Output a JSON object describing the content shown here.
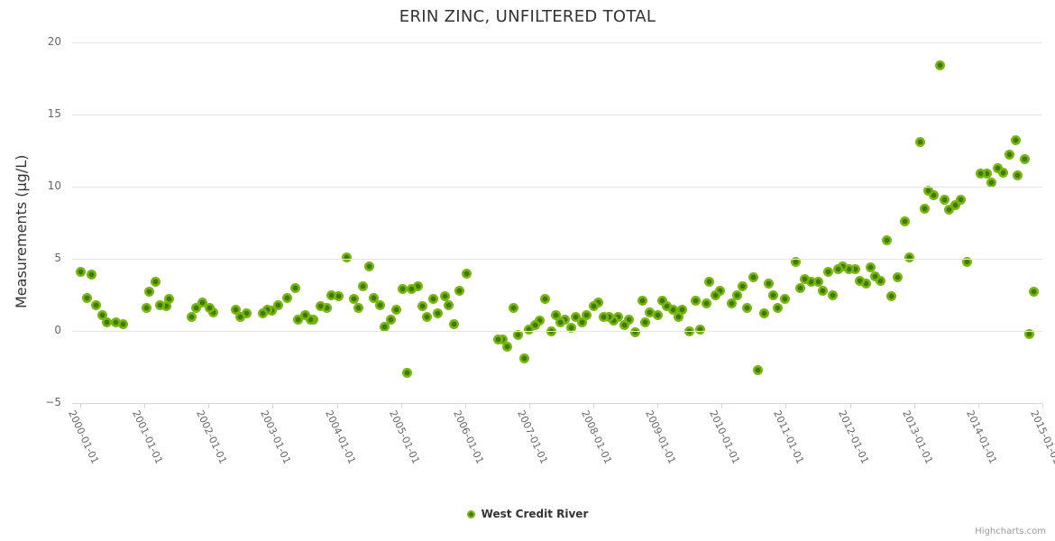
{
  "chart": {
    "credits_label": "Highcharts.com",
    "colors": {
      "marker_outer": "#79b60f",
      "marker_inner": "#3c7a02",
      "gridline": "#e6e6e6",
      "axis_line": "#ccd6eb",
      "title_text": "#333333",
      "tick_text": "#666666",
      "legend_text": "#333333",
      "credits_text": "#999999",
      "background": "#ffffff"
    }
  },
  "chart_data": {
    "type": "scatter",
    "title": "ERIN ZINC, UNFILTERED TOTAL",
    "xlabel": "",
    "ylabel": "Measurements (µg/L)",
    "ylim": [
      -5,
      20
    ],
    "xlim_years": [
      1999.87,
      2015.2
    ],
    "grid": true,
    "legend_position": "bottom-center",
    "y_ticks": [
      20,
      15,
      10,
      5,
      0,
      -5
    ],
    "y_tick_labels": [
      "20",
      "15",
      "10",
      "5",
      "0",
      "−5"
    ],
    "x_tick_labels": [
      "2000-01-01",
      "2001-01-01",
      "2002-01-01",
      "2003-01-01",
      "2004-01-01",
      "2005-01-01",
      "2006-01-01",
      "2007-01-01",
      "2008-01-01",
      "2009-01-01",
      "2010-01-01",
      "2011-01-01",
      "2012-01-01",
      "2013-01-01",
      "2014-01-01",
      "2015-01-01"
    ],
    "series": [
      {
        "name": "West Credit River",
        "points": [
          [
            2000.01,
            4.1
          ],
          [
            2000.11,
            2.3
          ],
          [
            2000.18,
            3.9
          ],
          [
            2000.25,
            1.8
          ],
          [
            2000.35,
            1.1
          ],
          [
            2000.42,
            0.6
          ],
          [
            2000.56,
            0.6
          ],
          [
            2000.67,
            0.5
          ],
          [
            2001.03,
            1.6
          ],
          [
            2001.08,
            2.7
          ],
          [
            2001.17,
            3.4
          ],
          [
            2001.25,
            1.8
          ],
          [
            2001.34,
            1.7
          ],
          [
            2001.39,
            2.2
          ],
          [
            2001.74,
            1.0
          ],
          [
            2001.81,
            1.6
          ],
          [
            2001.91,
            2.0
          ],
          [
            2002.02,
            1.6
          ],
          [
            2002.07,
            1.3
          ],
          [
            2002.43,
            1.5
          ],
          [
            2002.5,
            1.0
          ],
          [
            2002.59,
            1.2
          ],
          [
            2002.84,
            1.2
          ],
          [
            2002.91,
            1.5
          ],
          [
            2002.98,
            1.4
          ],
          [
            2003.08,
            1.8
          ],
          [
            2003.23,
            2.3
          ],
          [
            2003.35,
            3.0
          ],
          [
            2003.39,
            0.8
          ],
          [
            2003.5,
            1.1
          ],
          [
            2003.59,
            0.8
          ],
          [
            2003.64,
            0.8
          ],
          [
            2003.75,
            1.7
          ],
          [
            2003.84,
            1.6
          ],
          [
            2003.92,
            2.5
          ],
          [
            2004.03,
            2.4
          ],
          [
            2004.16,
            5.1
          ],
          [
            2004.26,
            2.2
          ],
          [
            2004.33,
            1.6
          ],
          [
            2004.41,
            3.1
          ],
          [
            2004.5,
            4.5
          ],
          [
            2004.58,
            2.3
          ],
          [
            2004.67,
            1.8
          ],
          [
            2004.74,
            0.3
          ],
          [
            2004.84,
            0.8
          ],
          [
            2004.92,
            1.5
          ],
          [
            2005.03,
            2.9
          ],
          [
            2005.09,
            -2.9
          ],
          [
            2005.16,
            2.9
          ],
          [
            2005.26,
            3.1
          ],
          [
            2005.33,
            1.7
          ],
          [
            2005.4,
            1.0
          ],
          [
            2005.51,
            2.2
          ],
          [
            2005.58,
            1.2
          ],
          [
            2005.68,
            2.4
          ],
          [
            2005.74,
            1.8
          ],
          [
            2005.82,
            0.5
          ],
          [
            2005.91,
            2.8
          ],
          [
            2006.03,
            4.0
          ],
          [
            2006.51,
            -0.6
          ],
          [
            2006.58,
            -0.6
          ],
          [
            2006.66,
            -1.1
          ],
          [
            2006.75,
            1.6
          ],
          [
            2006.83,
            -0.3
          ],
          [
            2006.92,
            -1.9
          ],
          [
            2006.99,
            0.1
          ],
          [
            2007.09,
            0.4
          ],
          [
            2007.16,
            0.7
          ],
          [
            2007.24,
            2.2
          ],
          [
            2007.34,
            0.0
          ],
          [
            2007.42,
            1.1
          ],
          [
            2007.48,
            0.6
          ],
          [
            2007.56,
            0.8
          ],
          [
            2007.65,
            0.2
          ],
          [
            2007.73,
            1.0
          ],
          [
            2007.82,
            0.6
          ],
          [
            2007.9,
            1.1
          ],
          [
            2008.0,
            1.7
          ],
          [
            2008.08,
            2.0
          ],
          [
            2008.16,
            1.0
          ],
          [
            2008.24,
            1.0
          ],
          [
            2008.32,
            0.7
          ],
          [
            2008.39,
            1.0
          ],
          [
            2008.49,
            0.4
          ],
          [
            2008.56,
            0.8
          ],
          [
            2008.65,
            -0.1
          ],
          [
            2008.76,
            2.1
          ],
          [
            2008.81,
            0.6
          ],
          [
            2008.88,
            1.3
          ],
          [
            2009.01,
            1.1
          ],
          [
            2009.08,
            2.1
          ],
          [
            2009.15,
            1.7
          ],
          [
            2009.24,
            1.5
          ],
          [
            2009.33,
            1.0
          ],
          [
            2009.39,
            1.5
          ],
          [
            2009.49,
            0.0
          ],
          [
            2009.59,
            2.1
          ],
          [
            2009.66,
            0.1
          ],
          [
            2009.76,
            1.9
          ],
          [
            2009.81,
            3.4
          ],
          [
            2009.9,
            2.5
          ],
          [
            2009.98,
            2.8
          ],
          [
            2010.15,
            1.9
          ],
          [
            2010.24,
            2.5
          ],
          [
            2010.33,
            3.1
          ],
          [
            2010.4,
            1.6
          ],
          [
            2010.5,
            3.7
          ],
          [
            2010.57,
            -2.7
          ],
          [
            2010.66,
            1.2
          ],
          [
            2010.74,
            3.3
          ],
          [
            2010.81,
            2.5
          ],
          [
            2010.88,
            1.6
          ],
          [
            2010.98,
            2.2
          ],
          [
            2011.15,
            4.8
          ],
          [
            2011.23,
            3.0
          ],
          [
            2011.3,
            3.6
          ],
          [
            2011.39,
            3.4
          ],
          [
            2011.5,
            3.4
          ],
          [
            2011.57,
            2.8
          ],
          [
            2011.66,
            4.1
          ],
          [
            2011.73,
            2.5
          ],
          [
            2011.81,
            4.3
          ],
          [
            2011.89,
            4.5
          ],
          [
            2011.98,
            4.3
          ],
          [
            2012.08,
            4.3
          ],
          [
            2012.16,
            3.5
          ],
          [
            2012.25,
            3.3
          ],
          [
            2012.32,
            4.4
          ],
          [
            2012.39,
            3.8
          ],
          [
            2012.47,
            3.5
          ],
          [
            2012.57,
            6.3
          ],
          [
            2012.65,
            2.4
          ],
          [
            2012.74,
            3.7
          ],
          [
            2012.85,
            7.6
          ],
          [
            2012.92,
            5.1
          ],
          [
            2013.09,
            13.1
          ],
          [
            2013.16,
            8.5
          ],
          [
            2013.22,
            9.7
          ],
          [
            2013.3,
            9.4
          ],
          [
            2013.41,
            18.4
          ],
          [
            2013.47,
            9.1
          ],
          [
            2013.55,
            8.4
          ],
          [
            2013.64,
            8.7
          ],
          [
            2013.73,
            9.1
          ],
          [
            2013.83,
            4.8
          ],
          [
            2014.04,
            10.9
          ],
          [
            2014.14,
            10.9
          ],
          [
            2014.21,
            10.3
          ],
          [
            2014.31,
            11.3
          ],
          [
            2014.39,
            11.0
          ],
          [
            2014.48,
            12.2
          ],
          [
            2014.59,
            13.2
          ],
          [
            2014.61,
            10.8
          ],
          [
            2014.72,
            11.9
          ],
          [
            2014.8,
            -0.2
          ],
          [
            2014.87,
            2.7
          ]
        ]
      }
    ]
  }
}
